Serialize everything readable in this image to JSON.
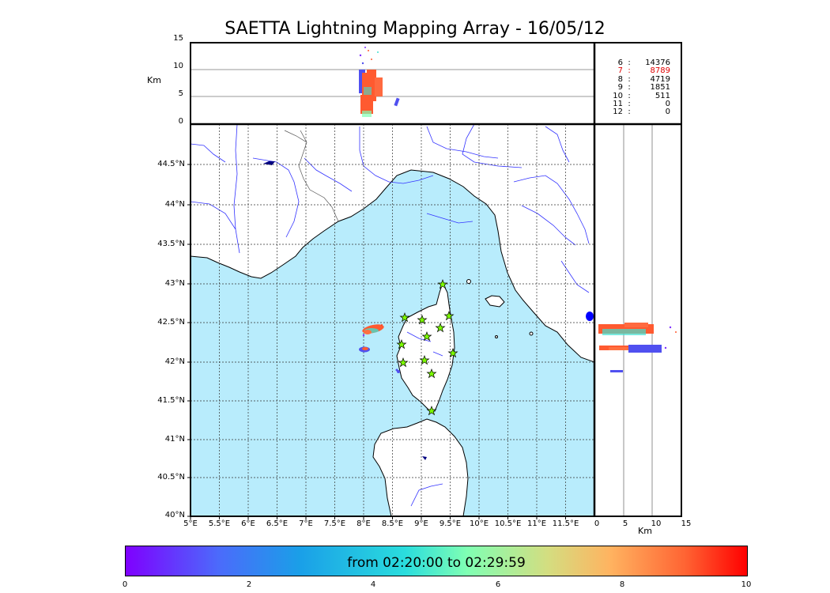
{
  "title": "SAETTA Lightning Mapping Array - 16/05/12",
  "top_panel": {
    "ylabel": "Km",
    "yticks": [
      "15",
      "10",
      "5",
      "0"
    ]
  },
  "map": {
    "lat_ticks": [
      "44.5°N",
      "44°N",
      "43.5°N",
      "43°N",
      "42.5°N",
      "42°N",
      "41.5°N",
      "41°N",
      "40.5°N",
      "40°N"
    ],
    "lon_ticks": [
      "5°E",
      "5.5°E",
      "6°E",
      "6.5°E",
      "7°E",
      "7.5°E",
      "8°E",
      "8.5°E",
      "9°E",
      "9.5°E",
      "10°E",
      "10.5°E",
      "11°E",
      "11.5°E"
    ],
    "colors": {
      "sea": "#b8ecfc",
      "land": "#ffffff",
      "coast": "#000000",
      "rivers": "#3333ff",
      "borders": "#555555",
      "station": "#7cfc00"
    }
  },
  "right_panel": {
    "xlabel": "Km",
    "xticks": [
      "0",
      "5",
      "10",
      "15"
    ]
  },
  "counts": [
    {
      "index": "6",
      "sep": ":",
      "value": "14376",
      "highlight": false
    },
    {
      "index": "7",
      "sep": ":",
      "value": "8789",
      "highlight": true
    },
    {
      "index": "8",
      "sep": ":",
      "value": "4719",
      "highlight": false
    },
    {
      "index": "9",
      "sep": ":",
      "value": "1851",
      "highlight": false
    },
    {
      "index": "10",
      "sep": ":",
      "value": "511",
      "highlight": false
    },
    {
      "index": "11",
      "sep": ":",
      "value": "0",
      "highlight": false
    },
    {
      "index": "12",
      "sep": ":",
      "value": "0",
      "highlight": false
    }
  ],
  "colorbar": {
    "label": "from 02:20:00 to 02:29:59",
    "ticks": [
      "0",
      "2",
      "4",
      "6",
      "8",
      "10"
    ]
  }
}
